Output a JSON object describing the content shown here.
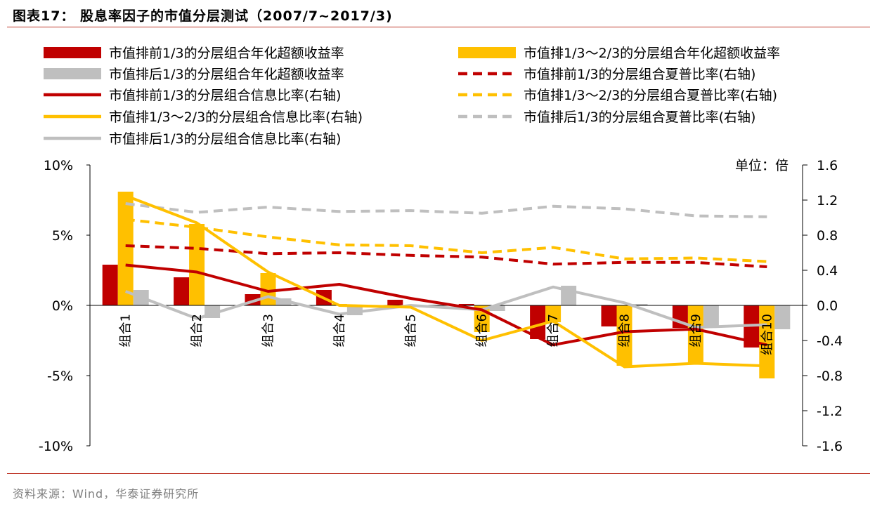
{
  "header": {
    "title": "图表17：  股息率因子的市值分层测试（2007/7~2017/3)"
  },
  "footer": {
    "source": "资料来源：Wind，华泰证券研究所"
  },
  "chart_data": {
    "type": "bar+line",
    "categories": [
      "组合1",
      "组合2",
      "组合3",
      "组合4",
      "组合5",
      "组合6",
      "组合7",
      "组合8",
      "组合9",
      "组合10"
    ],
    "unit_label": "单位：倍",
    "left_axis": {
      "ylim": [
        -0.1,
        0.1
      ],
      "ticks": [
        0.1,
        0.05,
        0.0,
        -0.05,
        -0.1
      ],
      "tick_labels": [
        "10%",
        "5%",
        "0%",
        "-5%",
        "-10%"
      ]
    },
    "right_axis": {
      "ylim": [
        -1.6,
        1.6
      ],
      "ticks": [
        1.6,
        1.2,
        0.8,
        0.4,
        0.0,
        -0.4,
        -0.8,
        -1.2,
        -1.6
      ],
      "tick_labels": [
        "1.6",
        "1.2",
        "0.8",
        "0.4",
        "0.0",
        "-0.4",
        "-0.8",
        "-1.2",
        "-1.6"
      ]
    },
    "bar_series": [
      {
        "name": "市值排前1/3的分层组合年化超额收益率",
        "color": "#c00000",
        "values": [
          0.029,
          0.02,
          0.008,
          0.011,
          0.004,
          0.001,
          -0.024,
          -0.015,
          -0.016,
          -0.03
        ]
      },
      {
        "name": "市值排1/3～2/3的分层组合年化超额收益率",
        "color": "#ffc000",
        "values": [
          0.081,
          0.058,
          0.023,
          0.001,
          0.0,
          -0.019,
          -0.012,
          -0.043,
          -0.042,
          -0.052
        ]
      },
      {
        "name": "市值排后1/3的分层组合年化超额收益率",
        "color": "#bfbfbf",
        "values": [
          0.011,
          -0.009,
          0.005,
          -0.007,
          0.0,
          -0.004,
          0.014,
          0.001,
          -0.016,
          -0.017
        ]
      }
    ],
    "line_series": [
      {
        "name": "市值排前1/3的分层组合信息比率(右轴)",
        "color": "#c00000",
        "dash": false,
        "values": [
          0.46,
          0.38,
          0.16,
          0.24,
          0.08,
          -0.05,
          -0.45,
          -0.3,
          -0.27,
          -0.45
        ]
      },
      {
        "name": "市值排1/3～2/3的分层组合信息比率(右轴)",
        "color": "#ffc000",
        "dash": false,
        "values": [
          1.25,
          0.94,
          0.38,
          0.0,
          -0.02,
          -0.4,
          -0.18,
          -0.7,
          -0.66,
          -0.69
        ]
      },
      {
        "name": "市值排后1/3的分层组合信息比率(右轴)",
        "color": "#bfbfbf",
        "dash": false,
        "values": [
          0.16,
          -0.15,
          0.1,
          -0.1,
          0.0,
          -0.05,
          0.21,
          0.03,
          -0.25,
          -0.22
        ]
      },
      {
        "name": "市值排前1/3的分层组合夏普比率(右轴)",
        "color": "#c00000",
        "dash": true,
        "values": [
          0.68,
          0.65,
          0.59,
          0.6,
          0.57,
          0.55,
          0.47,
          0.49,
          0.49,
          0.44
        ]
      },
      {
        "name": "市值排1/3～2/3的分层组合夏普比率(右轴)",
        "color": "#ffc000",
        "dash": true,
        "values": [
          0.98,
          0.89,
          0.78,
          0.69,
          0.68,
          0.6,
          0.66,
          0.53,
          0.54,
          0.5
        ]
      },
      {
        "name": "市值排后1/3的分层组合夏普比率(右轴)",
        "color": "#bfbfbf",
        "dash": true,
        "values": [
          1.16,
          1.06,
          1.12,
          1.07,
          1.08,
          1.05,
          1.13,
          1.1,
          1.02,
          1.01
        ]
      }
    ],
    "legend": [
      {
        "label": "市值排前1/3的分层组合年化超额收益率",
        "kind": "bar",
        "color": "#c00000"
      },
      {
        "label": "市值排1/3～2/3的分层组合年化超额收益率",
        "kind": "bar",
        "color": "#ffc000"
      },
      {
        "label": "市值排后1/3的分层组合年化超额收益率",
        "kind": "bar",
        "color": "#bfbfbf"
      },
      {
        "label": "市值排前1/3的分层组合夏普比率(右轴)",
        "kind": "dash",
        "color": "#c00000"
      },
      {
        "label": "市值排前1/3的分层组合信息比率(右轴)",
        "kind": "line",
        "color": "#c00000"
      },
      {
        "label": "市值排1/3～2/3的分层组合夏普比率(右轴)",
        "kind": "dash",
        "color": "#ffc000"
      },
      {
        "label": "市值排1/3～2/3的分层组合信息比率(右轴)",
        "kind": "line",
        "color": "#ffc000"
      },
      {
        "label": "市值排后1/3的分层组合夏普比率(右轴)",
        "kind": "dash",
        "color": "#bfbfbf"
      },
      {
        "label": "市值排后1/3的分层组合信息比率(右轴)",
        "kind": "line",
        "color": "#bfbfbf"
      }
    ]
  }
}
